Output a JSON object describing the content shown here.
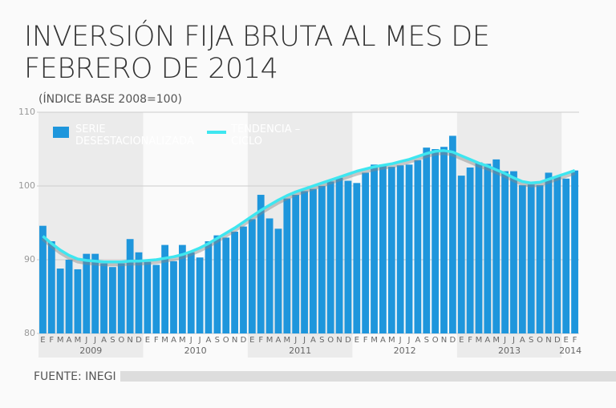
{
  "chart_data": {
    "type": "bar-line",
    "title": "INVERSIÓN FIJA BRUTA AL MES DE FEBRERO DE 2014",
    "subtitle": "(ÍNDICE BASE 2008=100)",
    "source": "FUENTE: INEGI",
    "categories": [
      "E",
      "F",
      "M",
      "A",
      "M",
      "J",
      "J",
      "A",
      "S",
      "O",
      "N",
      "D",
      "E",
      "F",
      "M",
      "A",
      "M",
      "J",
      "J",
      "A",
      "S",
      "O",
      "N",
      "D",
      "E",
      "F",
      "M",
      "A",
      "M",
      "J",
      "J",
      "A",
      "S",
      "O",
      "N",
      "D",
      "E",
      "F",
      "M",
      "A",
      "M",
      "J",
      "J",
      "A",
      "S",
      "O",
      "N",
      "D",
      "E",
      "F",
      "M",
      "A",
      "M",
      "J",
      "J",
      "A",
      "S",
      "O",
      "N",
      "D",
      "E",
      "F"
    ],
    "year_labels": [
      "2009",
      "2010",
      "2011",
      "2012",
      "2013",
      "2014"
    ],
    "series": [
      {
        "name": "SERIE DESESTACIONALIZADA",
        "color": "#1e96dc",
        "type": "bar",
        "values": [
          94.6,
          92.5,
          88.8,
          90.0,
          88.7,
          90.8,
          90.8,
          89.5,
          89.0,
          89.5,
          92.8,
          91.0,
          89.7,
          89.3,
          92.0,
          89.8,
          92.0,
          91.0,
          90.3,
          92.5,
          93.3,
          93.0,
          93.8,
          94.5,
          95.5,
          98.8,
          95.6,
          94.2,
          98.3,
          98.8,
          99.3,
          99.6,
          100.0,
          100.6,
          101.1,
          100.7,
          100.4,
          101.8,
          102.9,
          102.9,
          102.6,
          102.8,
          102.9,
          103.5,
          105.2,
          105.0,
          105.3,
          106.8,
          101.4,
          102.5,
          103.2,
          103.0,
          103.6,
          102.0,
          102.0,
          100.1,
          100.2,
          100.1,
          101.8,
          101.3,
          101.0,
          102.1
        ]
      },
      {
        "name": "TENDENCIA –CICLO",
        "color": "#3ee6f0",
        "type": "line",
        "values": [
          93.2,
          92.2,
          91.3,
          90.6,
          90.1,
          89.9,
          89.8,
          89.7,
          89.7,
          89.7,
          89.8,
          89.8,
          89.9,
          90.0,
          90.2,
          90.4,
          90.7,
          91.1,
          91.6,
          92.2,
          92.9,
          93.6,
          94.3,
          95.1,
          95.9,
          96.7,
          97.4,
          98.1,
          98.7,
          99.2,
          99.6,
          100.0,
          100.4,
          100.8,
          101.2,
          101.6,
          102.0,
          102.3,
          102.6,
          102.8,
          103.0,
          103.3,
          103.6,
          104.0,
          104.4,
          104.7,
          104.8,
          104.6,
          104.1,
          103.6,
          103.1,
          102.7,
          102.2,
          101.7,
          101.1,
          100.6,
          100.4,
          100.5,
          100.9,
          101.3,
          101.7,
          102.1
        ]
      }
    ],
    "ylim": [
      80,
      110
    ],
    "yticks": [
      80,
      90,
      100,
      110
    ],
    "grid": true
  }
}
